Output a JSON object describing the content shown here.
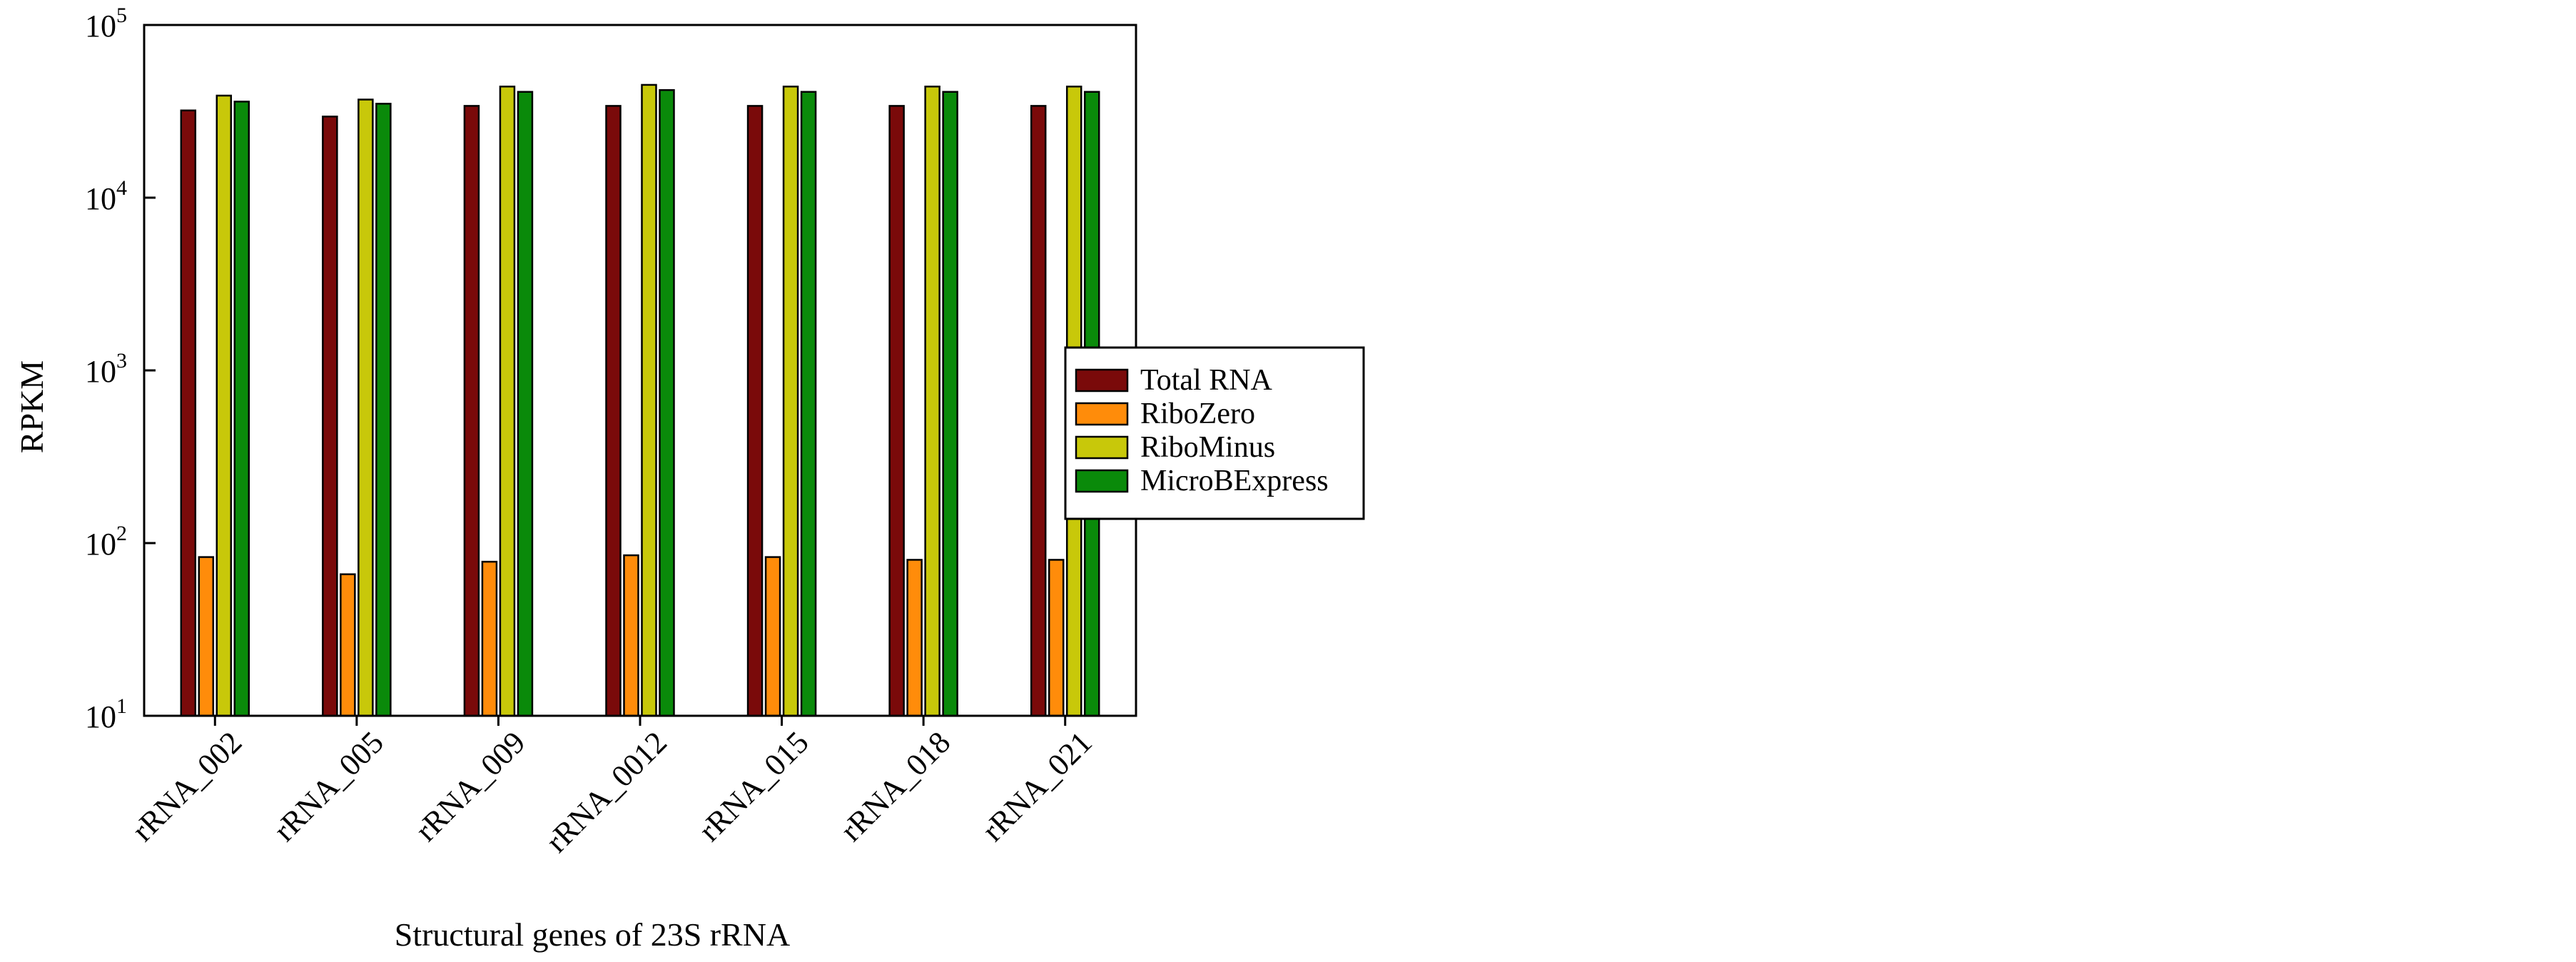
{
  "chart_data": {
    "type": "bar",
    "title": "",
    "xlabel": "Structural genes of 23S rRNA",
    "ylabel": "RPKM",
    "y_scale": "log",
    "ylim": [
      10,
      100000
    ],
    "y_ticks": [
      {
        "base": "10",
        "exp": "1"
      },
      {
        "base": "10",
        "exp": "2"
      },
      {
        "base": "10",
        "exp": "3"
      },
      {
        "base": "10",
        "exp": "4"
      },
      {
        "base": "10",
        "exp": "5"
      }
    ],
    "categories": [
      "rRNA_002",
      "rRNA_005",
      "rRNA_009",
      "rRNA_0012",
      "rRNA_015",
      "rRNA_018",
      "rRNA_021"
    ],
    "series": [
      {
        "name": "Total RNA",
        "color": "#7a0a0a",
        "values": [
          32000,
          29500,
          34000,
          34000,
          34000,
          34000,
          34000
        ]
      },
      {
        "name": "RiboZero",
        "color": "#ff8c0a",
        "values": [
          83,
          66,
          78,
          85,
          83,
          80,
          80
        ]
      },
      {
        "name": "RiboMinus",
        "color": "#c8c80a",
        "values": [
          39000,
          37000,
          44000,
          45000,
          44000,
          44000,
          44000
        ]
      },
      {
        "name": "MicroBExpress",
        "color": "#0a8a0a",
        "values": [
          36000,
          35000,
          41000,
          42000,
          41000,
          41000,
          41000
        ]
      }
    ],
    "grid": false,
    "legend_position": "right"
  }
}
